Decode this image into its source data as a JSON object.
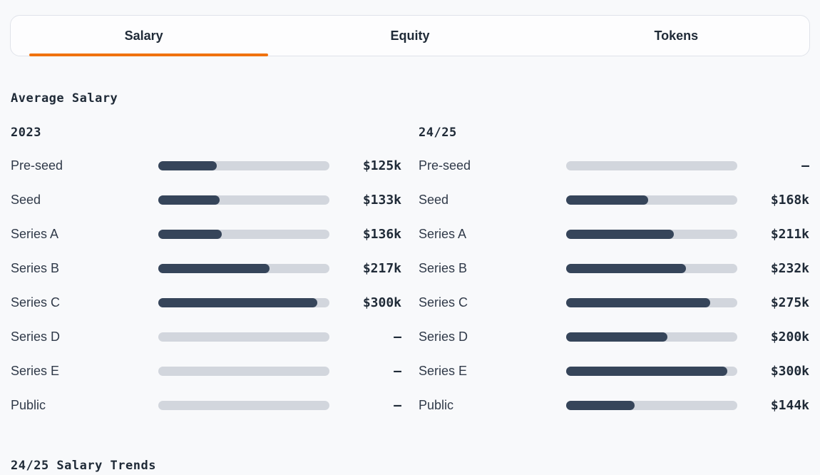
{
  "tabs": {
    "items": [
      {
        "label": "Salary",
        "active": true
      },
      {
        "label": "Equity",
        "active": false
      },
      {
        "label": "Tokens",
        "active": false
      }
    ]
  },
  "page": {
    "section_title": "Average Salary",
    "footer_title": "24/25 Salary Trends"
  },
  "columns": [
    {
      "heading": "2023",
      "rows": [
        {
          "label": "Pre-seed",
          "value": "$125k",
          "percent": 34
        },
        {
          "label": "Seed",
          "value": "$133k",
          "percent": 36
        },
        {
          "label": "Series A",
          "value": "$136k",
          "percent": 37
        },
        {
          "label": "Series B",
          "value": "$217k",
          "percent": 65
        },
        {
          "label": "Series C",
          "value": "$300k",
          "percent": 93
        },
        {
          "label": "Series D",
          "value": "–",
          "percent": 0
        },
        {
          "label": "Series E",
          "value": "–",
          "percent": 0
        },
        {
          "label": "Public",
          "value": "–",
          "percent": 0
        }
      ]
    },
    {
      "heading": "24/25",
      "rows": [
        {
          "label": "Pre-seed",
          "value": "–",
          "percent": 0
        },
        {
          "label": "Seed",
          "value": "$168k",
          "percent": 48
        },
        {
          "label": "Series A",
          "value": "$211k",
          "percent": 63
        },
        {
          "label": "Series B",
          "value": "$232k",
          "percent": 70
        },
        {
          "label": "Series C",
          "value": "$275k",
          "percent": 84
        },
        {
          "label": "Series D",
          "value": "$200k",
          "percent": 59
        },
        {
          "label": "Series E",
          "value": "$300k",
          "percent": 94
        },
        {
          "label": "Public",
          "value": "$144k",
          "percent": 40
        }
      ]
    }
  ],
  "colors": {
    "accent_orange": "#f0720e",
    "bar_fill": "#36455a",
    "bar_track": "#d2d6dd"
  }
}
